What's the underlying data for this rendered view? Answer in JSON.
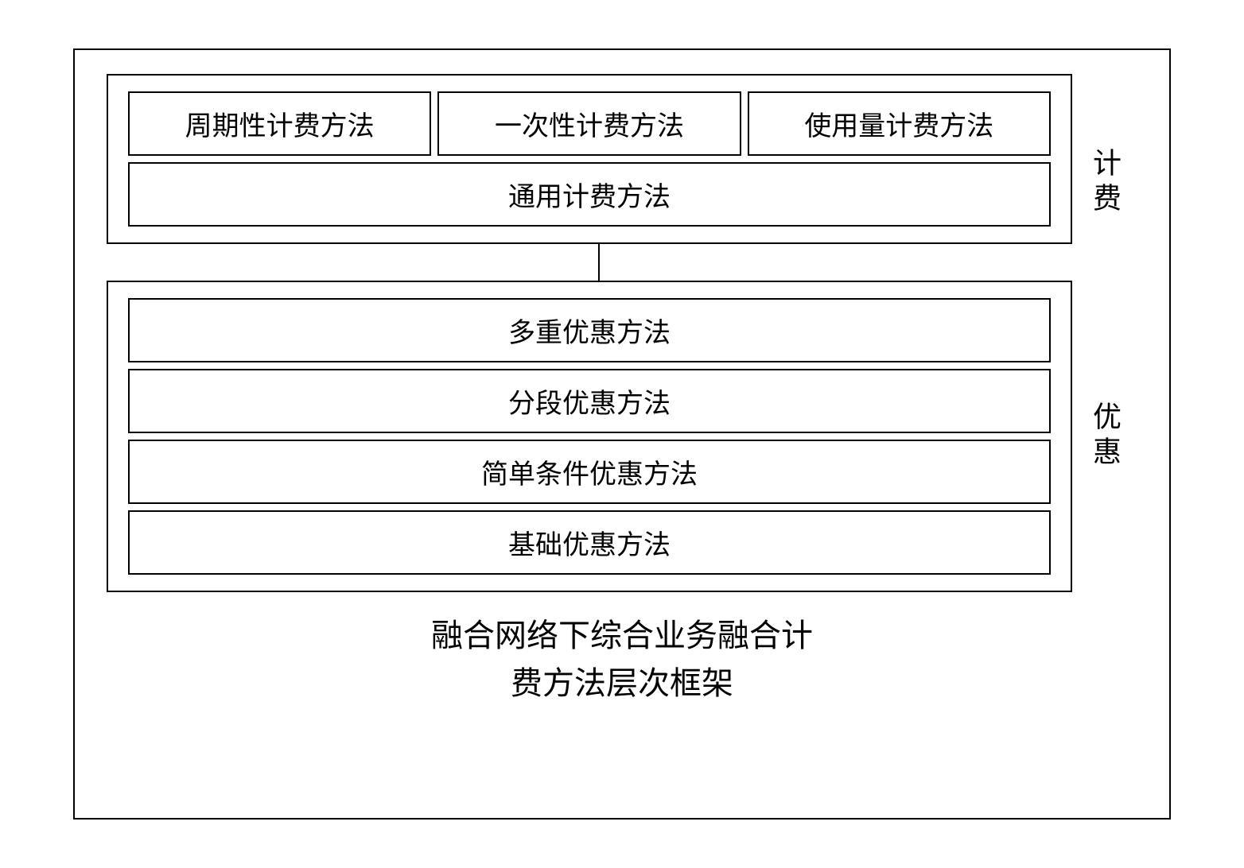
{
  "diagram": {
    "type": "hierarchical-block",
    "background_color": "#ffffff",
    "border_color": "#000000",
    "text_color": "#000000",
    "font_family": "SimSun",
    "box_font_size": 34,
    "sidelabel_font_size": 36,
    "caption_font_size": 40,
    "billing": {
      "side_label": "计费",
      "top_row": [
        "周期性计费方法",
        "一次性计费方法",
        "使用量计费方法"
      ],
      "bottom_row": "通用计费方法"
    },
    "discount": {
      "side_label": "优惠",
      "rows": [
        "多重优惠方法",
        "分段优惠方法",
        "简单条件优惠方法",
        "基础优惠方法"
      ]
    },
    "caption_line1": "融合网络下综合业务融合计",
    "caption_line2": "费方法层次框架"
  }
}
